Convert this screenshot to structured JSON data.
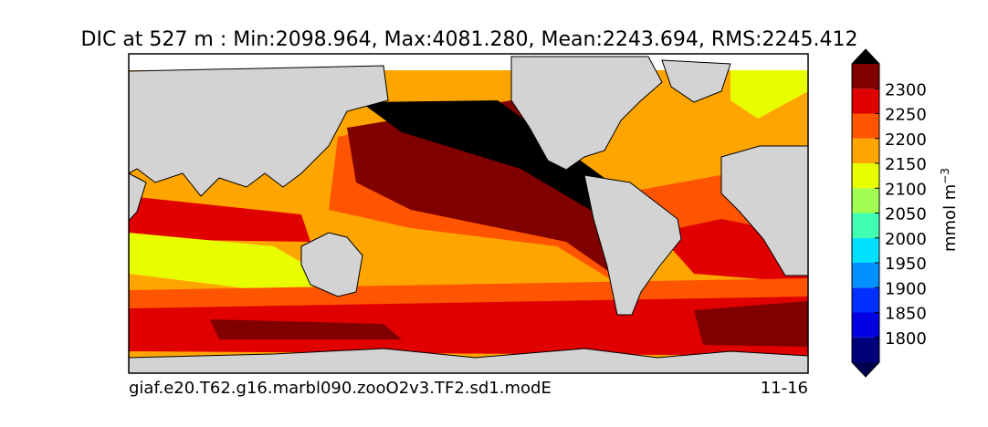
{
  "title": "DIC at 527 m : Min:2098.964, Max:4081.280, Mean:2243.694, RMS:2245.412",
  "colorbar": {
    "label": "mmol m",
    "label_exponent": "−3",
    "vlim": [
      1750,
      2350
    ],
    "ticks": [
      1800,
      1850,
      1900,
      1950,
      2000,
      2050,
      2100,
      2150,
      2200,
      2250,
      2300
    ],
    "colors": [
      "#00007a",
      "#0000e0",
      "#0030ff",
      "#0090ff",
      "#00e0ff",
      "#40ffb0",
      "#a0ff50",
      "#e8ff00",
      "#ffa500",
      "#ff5500",
      "#e00000",
      "#800000"
    ],
    "under_color": "#000050",
    "over_color": "#000000"
  },
  "footer": {
    "left": "giaf.e20.T62.g16.marbl090.zooO2v3.TF2.sd1.modE",
    "right": "11-16"
  }
}
